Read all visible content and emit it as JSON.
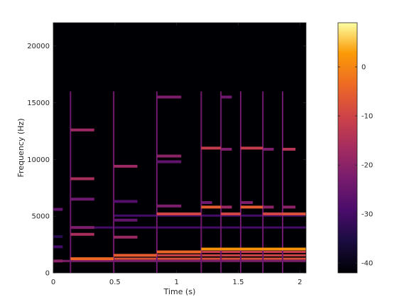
{
  "chart_data": {
    "type": "heatmap",
    "title": "",
    "xlabel": "Time (s)",
    "ylabel": "Frequency (Hz)",
    "xlim": [
      0,
      2.05
    ],
    "ylim": [
      0,
      22050
    ],
    "xticks": [
      0,
      0.5,
      1,
      1.5,
      2
    ],
    "xtick_labels": [
      "0",
      "0.5",
      "1",
      "1.5",
      "2"
    ],
    "yticks": [
      0,
      5000,
      10000,
      15000,
      20000
    ],
    "ytick_labels": [
      "0",
      "5000",
      "10000",
      "15000",
      "20000"
    ],
    "colormap": "inferno",
    "background_color": "#000004",
    "colorbar": {
      "range": [
        -42,
        9
      ],
      "ticks": [
        0,
        -10,
        -20,
        -30,
        -40
      ],
      "tick_labels": [
        "0",
        "-10",
        "-20",
        "-30",
        "-40"
      ]
    },
    "onsets_s": [
      0.14,
      0.49,
      0.84,
      1.2,
      1.36,
      1.52,
      1.7,
      1.86
    ],
    "segments": [
      {
        "t0": 0.0,
        "t1": 0.14,
        "harmonics_hz": [
          1050,
          2300,
          3200,
          5600
        ],
        "levels_db": [
          -20,
          -30,
          -34,
          -26
        ]
      },
      {
        "t0": 0.14,
        "t1": 0.49,
        "harmonics_hz": [
          1250,
          3400,
          4000,
          6500,
          8300,
          12600
        ],
        "levels_db": [
          -4,
          -16,
          -22,
          -24,
          -16,
          -18
        ]
      },
      {
        "t0": 0.49,
        "t1": 0.84,
        "harmonics_hz": [
          1550,
          3150,
          4650,
          6300,
          9400
        ],
        "levels_db": [
          -6,
          -18,
          -26,
          -28,
          -18
        ]
      },
      {
        "t0": 0.84,
        "t1": 1.2,
        "harmonics_hz": [
          1850,
          5200,
          5900,
          9800,
          10300,
          15500
        ],
        "levels_db": [
          -4,
          -10,
          -22,
          -26,
          -20,
          -22
        ]
      },
      {
        "t0": 1.2,
        "t1": 1.36,
        "harmonics_hz": [
          2100,
          5800,
          6200,
          11000
        ],
        "levels_db": [
          2,
          -6,
          -24,
          -12
        ]
      },
      {
        "t0": 1.36,
        "t1": 1.52,
        "harmonics_hz": [
          2100,
          5200,
          5800,
          10900,
          15500
        ],
        "levels_db": [
          2,
          -10,
          -18,
          -22,
          -24
        ]
      },
      {
        "t0": 1.52,
        "t1": 1.7,
        "harmonics_hz": [
          2100,
          5800,
          6200,
          11000
        ],
        "levels_db": [
          2,
          -6,
          -22,
          -12
        ]
      },
      {
        "t0": 1.7,
        "t1": 1.86,
        "harmonics_hz": [
          2100,
          5200,
          5800,
          10900
        ],
        "levels_db": [
          2,
          -10,
          -20,
          -22
        ]
      },
      {
        "t0": 1.86,
        "t1": 2.05,
        "harmonics_hz": [
          2100,
          5200,
          5800,
          10900
        ],
        "levels_db": [
          2,
          -8,
          -20,
          -14
        ]
      }
    ],
    "sustained_bands": [
      {
        "t0": 0.14,
        "t1": 2.05,
        "hz": 1250,
        "level_db": -8
      },
      {
        "t0": 0.49,
        "t1": 2.05,
        "hz": 1550,
        "level_db": -10
      },
      {
        "t0": 0.84,
        "t1": 2.05,
        "hz": 1850,
        "level_db": -12
      },
      {
        "t0": 0.0,
        "t1": 2.05,
        "hz": 1050,
        "level_db": -22
      },
      {
        "t0": 0.14,
        "t1": 2.05,
        "hz": 4000,
        "level_db": -30
      },
      {
        "t0": 0.49,
        "t1": 2.05,
        "hz": 5050,
        "level_db": -30
      }
    ]
  }
}
